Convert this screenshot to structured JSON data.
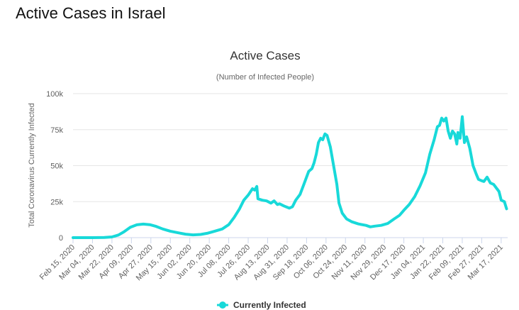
{
  "page": {
    "heading": "Active Cases in Israel"
  },
  "chart_data": {
    "type": "line",
    "title": "Active Cases",
    "subtitle": "(Number of Infected People)",
    "ylabel": "Total Coronavirus Currently Infected",
    "xlabel": "",
    "ylim": [
      0,
      100000
    ],
    "yticks": [
      0,
      25000,
      50000,
      75000,
      100000
    ],
    "ytick_labels": [
      "0",
      "25k",
      "50k",
      "75k",
      "100k"
    ],
    "x_range": [
      "2020-02-15",
      "2021-03-23"
    ],
    "xticks": [
      "2020-02-15",
      "2020-03-04",
      "2020-03-22",
      "2020-04-09",
      "2020-04-27",
      "2020-05-15",
      "2020-06-02",
      "2020-06-20",
      "2020-07-08",
      "2020-07-26",
      "2020-08-13",
      "2020-08-31",
      "2020-09-18",
      "2020-10-06",
      "2020-10-24",
      "2020-11-11",
      "2020-11-29",
      "2020-12-17",
      "2021-01-04",
      "2021-01-22",
      "2021-02-09",
      "2021-02-27",
      "2021-03-17"
    ],
    "xtick_labels": [
      "Feb 15, 2020",
      "Mar 04, 2020",
      "Mar 22, 2020",
      "Apr 09, 2020",
      "Apr 27, 2020",
      "May 15, 2020",
      "Jun 02, 2020",
      "Jun 20, 2020",
      "Jul 08, 2020",
      "Jul 26, 2020",
      "Aug 13, 2020",
      "Aug 31, 2020",
      "Sep 18, 2020",
      "Oct 06, 2020",
      "Oct 24, 2020",
      "Nov 11, 2020",
      "Nov 29, 2020",
      "Dec 17, 2020",
      "Jan 04, 2021",
      "Jan 22, 2021",
      "Feb 09, 2021",
      "Feb 27, 2021",
      "Mar 17, 2021"
    ],
    "grid": true,
    "legend_position": "bottom-center",
    "series": [
      {
        "name": "Currently Infected",
        "color": "#18d9d9",
        "points": [
          [
            "2020-02-15",
            0
          ],
          [
            "2020-03-04",
            0
          ],
          [
            "2020-03-15",
            100
          ],
          [
            "2020-03-22",
            500
          ],
          [
            "2020-03-28",
            1800
          ],
          [
            "2020-04-02",
            4000
          ],
          [
            "2020-04-08",
            7200
          ],
          [
            "2020-04-14",
            8900
          ],
          [
            "2020-04-20",
            9400
          ],
          [
            "2020-04-26",
            9000
          ],
          [
            "2020-05-02",
            7800
          ],
          [
            "2020-05-08",
            6000
          ],
          [
            "2020-05-15",
            4500
          ],
          [
            "2020-05-22",
            3400
          ],
          [
            "2020-05-29",
            2400
          ],
          [
            "2020-06-05",
            1900
          ],
          [
            "2020-06-12",
            2200
          ],
          [
            "2020-06-18",
            3000
          ],
          [
            "2020-06-25",
            4500
          ],
          [
            "2020-07-02",
            6000
          ],
          [
            "2020-07-08",
            9000
          ],
          [
            "2020-07-13",
            14000
          ],
          [
            "2020-07-18",
            20000
          ],
          [
            "2020-07-22",
            26000
          ],
          [
            "2020-07-26",
            29500
          ],
          [
            "2020-07-30",
            34000
          ],
          [
            "2020-08-01",
            33000
          ],
          [
            "2020-08-03",
            35500
          ],
          [
            "2020-08-04",
            27000
          ],
          [
            "2020-08-08",
            26000
          ],
          [
            "2020-08-12",
            25500
          ],
          [
            "2020-08-16",
            24000
          ],
          [
            "2020-08-19",
            25500
          ],
          [
            "2020-08-22",
            23000
          ],
          [
            "2020-08-24",
            23500
          ],
          [
            "2020-08-28",
            22000
          ],
          [
            "2020-09-02",
            20500
          ],
          [
            "2020-09-05",
            21500
          ],
          [
            "2020-09-08",
            26000
          ],
          [
            "2020-09-12",
            30000
          ],
          [
            "2020-09-16",
            38000
          ],
          [
            "2020-09-20",
            46000
          ],
          [
            "2020-09-23",
            48000
          ],
          [
            "2020-09-25",
            52000
          ],
          [
            "2020-09-27",
            58000
          ],
          [
            "2020-09-29",
            66000
          ],
          [
            "2020-10-01",
            69000
          ],
          [
            "2020-10-03",
            68000
          ],
          [
            "2020-10-05",
            72000
          ],
          [
            "2020-10-07",
            71000
          ],
          [
            "2020-10-10",
            63000
          ],
          [
            "2020-10-13",
            50000
          ],
          [
            "2020-10-16",
            37000
          ],
          [
            "2020-10-18",
            24000
          ],
          [
            "2020-10-21",
            17000
          ],
          [
            "2020-10-25",
            13000
          ],
          [
            "2020-10-30",
            11000
          ],
          [
            "2020-11-05",
            9500
          ],
          [
            "2020-11-12",
            8500
          ],
          [
            "2020-11-16",
            7500
          ],
          [
            "2020-11-20",
            8000
          ],
          [
            "2020-11-26",
            8500
          ],
          [
            "2020-12-02",
            9800
          ],
          [
            "2020-12-08",
            13000
          ],
          [
            "2020-12-13",
            15500
          ],
          [
            "2020-12-17",
            19000
          ],
          [
            "2020-12-22",
            23000
          ],
          [
            "2020-12-27",
            28500
          ],
          [
            "2021-01-01",
            36000
          ],
          [
            "2021-01-06",
            45000
          ],
          [
            "2021-01-10",
            58000
          ],
          [
            "2021-01-14",
            68000
          ],
          [
            "2021-01-17",
            77000
          ],
          [
            "2021-01-19",
            78000
          ],
          [
            "2021-01-21",
            83000
          ],
          [
            "2021-01-23",
            81000
          ],
          [
            "2021-01-25",
            83000
          ],
          [
            "2021-01-27",
            74000
          ],
          [
            "2021-01-29",
            69000
          ],
          [
            "2021-01-31",
            74000
          ],
          [
            "2021-02-02",
            72000
          ],
          [
            "2021-02-04",
            65000
          ],
          [
            "2021-02-05",
            73000
          ],
          [
            "2021-02-07",
            69000
          ],
          [
            "2021-02-09",
            84000
          ],
          [
            "2021-02-11",
            66000
          ],
          [
            "2021-02-13",
            70000
          ],
          [
            "2021-02-16",
            62000
          ],
          [
            "2021-02-19",
            50000
          ],
          [
            "2021-02-22",
            44000
          ],
          [
            "2021-02-24",
            40500
          ],
          [
            "2021-02-27",
            39500
          ],
          [
            "2021-03-01",
            39000
          ],
          [
            "2021-03-04",
            42000
          ],
          [
            "2021-03-07",
            38000
          ],
          [
            "2021-03-10",
            37000
          ],
          [
            "2021-03-13",
            34000
          ],
          [
            "2021-03-15",
            32000
          ],
          [
            "2021-03-17",
            26000
          ],
          [
            "2021-03-20",
            25000
          ],
          [
            "2021-03-22",
            20000
          ]
        ]
      }
    ]
  }
}
